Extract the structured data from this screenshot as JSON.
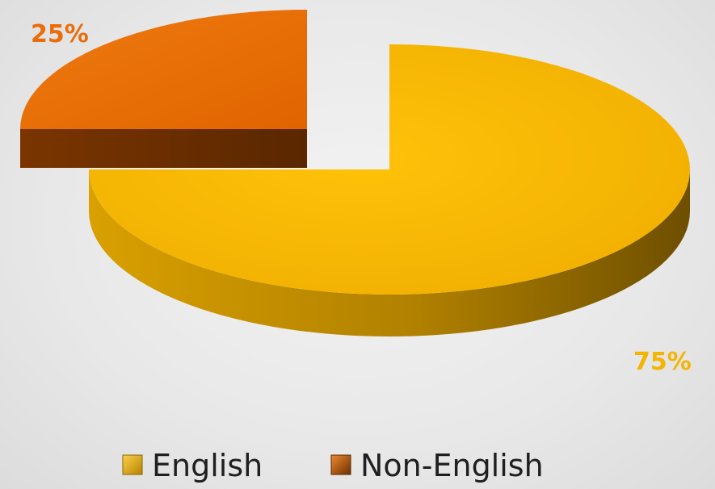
{
  "chart_data": {
    "type": "pie",
    "title": "",
    "slices": [
      {
        "name": "English",
        "value": 75,
        "label": "75%",
        "color": "#f5b400",
        "side_color": "#b48200",
        "label_color": "#f5b400"
      },
      {
        "name": "Non-English",
        "value": 25,
        "label": "25%",
        "color": "#ea6c0a",
        "side_color": "#6b2f00",
        "label_color": "#ea6c0a"
      }
    ],
    "exploded_slice": "Non-English",
    "style": "3d",
    "legend_position": "bottom"
  }
}
